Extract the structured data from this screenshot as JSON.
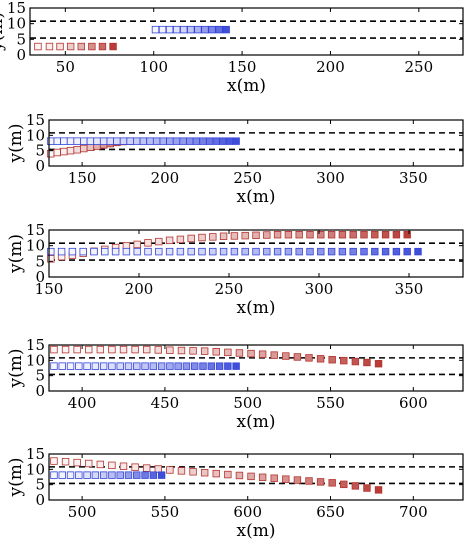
{
  "chart_data": [
    {
      "type": "scatter",
      "xlabel": "x(m)",
      "ylabel": "y(m)",
      "xlim": [
        30,
        275
      ],
      "ylim": [
        0,
        15
      ],
      "xticks": [
        50,
        100,
        150,
        200,
        250
      ],
      "yticks": [
        0,
        5,
        10,
        15
      ],
      "lane_lines": [
        5.4,
        10.8
      ],
      "series": [
        {
          "color": "#b4332e",
          "x": [
            34.5,
            41,
            47,
            53,
            59,
            65,
            71,
            77
          ],
          "y": [
            2.7,
            2.7,
            2.7,
            2.7,
            2.7,
            2.7,
            2.7,
            2.7
          ]
        },
        {
          "color": "#3444d8",
          "x": [
            101,
            105,
            109,
            113,
            117,
            121,
            125,
            129,
            133,
            137,
            141
          ],
          "y": [
            8.1,
            8.1,
            8.1,
            8.1,
            8.1,
            8.1,
            8.1,
            8.1,
            8.1,
            8.1,
            8.1
          ]
        }
      ]
    },
    {
      "type": "scatter",
      "xlabel": "x(m)",
      "ylabel": "y(m)",
      "xlim": [
        130,
        380
      ],
      "ylim": [
        0,
        15
      ],
      "xticks": [
        150,
        200,
        250,
        300,
        350
      ],
      "yticks": [
        0,
        5,
        10,
        15
      ],
      "lane_lines": [
        5.4,
        10.8
      ],
      "series": [
        {
          "color": "#b4332e",
          "x": [
            131,
            135,
            139,
            143,
            147,
            151,
            155,
            159,
            163,
            167,
            171,
            175,
            179
          ],
          "y": [
            4.0,
            4.4,
            4.7,
            5.0,
            5.3,
            5.7,
            6.1,
            6.5,
            6.9,
            7.3,
            7.7,
            8.0,
            8.1
          ]
        },
        {
          "color": "#3444d8",
          "x": [
            131,
            135,
            139,
            143,
            147,
            151,
            155,
            159,
            163,
            167,
            171,
            175,
            179,
            183,
            187,
            191,
            195,
            199,
            203,
            207,
            211,
            215,
            219,
            223,
            227,
            231,
            235,
            239,
            243
          ],
          "y": [
            8.1,
            8.1,
            8.1,
            8.1,
            8.1,
            8.1,
            8.1,
            8.1,
            8.1,
            8.1,
            8.1,
            8.1,
            8.1,
            8.1,
            8.1,
            8.1,
            8.1,
            8.1,
            8.1,
            8.1,
            8.1,
            8.1,
            8.1,
            8.1,
            8.1,
            8.1,
            8.1,
            8.1,
            8.1
          ]
        }
      ]
    },
    {
      "type": "scatter",
      "xlabel": "x(m)",
      "ylabel": "y(m)",
      "xlim": [
        150,
        380
      ],
      "ylim": [
        0,
        15
      ],
      "xticks": [
        150,
        200,
        250,
        300,
        350
      ],
      "yticks": [
        0,
        5,
        10,
        15
      ],
      "lane_lines": [
        5.4,
        10.8
      ],
      "series": [
        {
          "color": "#b4332e",
          "x": [
            151,
            157,
            163,
            169,
            175,
            181,
            187,
            193,
            199,
            205,
            211,
            217,
            223,
            229,
            235,
            241,
            247,
            253,
            259,
            265,
            271,
            277,
            283,
            289,
            295,
            301,
            307,
            313,
            319,
            325,
            331,
            337,
            343,
            349
          ],
          "y": [
            5.8,
            6.5,
            7.0,
            7.6,
            8.2,
            8.8,
            9.4,
            9.9,
            10.4,
            10.9,
            11.3,
            11.7,
            12.0,
            12.3,
            12.6,
            12.8,
            13.0,
            13.1,
            13.2,
            13.3,
            13.4,
            13.5,
            13.5,
            13.5,
            13.5,
            13.5,
            13.5,
            13.5,
            13.5,
            13.5,
            13.5,
            13.5,
            13.5,
            13.5
          ]
        },
        {
          "color": "#3444d8",
          "x": [
            151,
            157,
            163,
            169,
            175,
            181,
            187,
            193,
            199,
            205,
            211,
            217,
            223,
            229,
            235,
            241,
            247,
            253,
            259,
            265,
            271,
            277,
            283,
            289,
            295,
            301,
            307,
            313,
            319,
            325,
            331,
            337,
            343,
            349,
            355
          ],
          "y": [
            8.1,
            8.1,
            8.1,
            8.1,
            8.1,
            8.1,
            8.1,
            8.1,
            8.1,
            8.1,
            8.1,
            8.1,
            8.1,
            8.1,
            8.1,
            8.1,
            8.1,
            8.1,
            8.1,
            8.1,
            8.1,
            8.1,
            8.1,
            8.1,
            8.1,
            8.1,
            8.1,
            8.1,
            8.1,
            8.1,
            8.1,
            8.1,
            8.1,
            8.1,
            8.1
          ]
        }
      ]
    },
    {
      "type": "scatter",
      "xlabel": "x(m)",
      "ylabel": "y(m)",
      "xlim": [
        380,
        630
      ],
      "ylim": [
        0,
        15
      ],
      "xticks": [
        400,
        450,
        500,
        550,
        600
      ],
      "yticks": [
        0,
        5,
        10,
        15
      ],
      "lane_lines": [
        5.4,
        10.8
      ],
      "series": [
        {
          "color": "#b4332e",
          "x": [
            383,
            390,
            397,
            404,
            411,
            418,
            425,
            432,
            439,
            446,
            453,
            460,
            467,
            474,
            481,
            488,
            495,
            502,
            509,
            516,
            523,
            530,
            537,
            544,
            551,
            558,
            565,
            572,
            579
          ],
          "y": [
            13.5,
            13.5,
            13.5,
            13.5,
            13.5,
            13.5,
            13.5,
            13.5,
            13.5,
            13.4,
            13.3,
            13.2,
            13.1,
            13.0,
            12.8,
            12.6,
            12.4,
            12.2,
            12.0,
            11.7,
            11.4,
            11.1,
            10.8,
            10.5,
            10.2,
            9.9,
            9.6,
            9.3,
            8.9
          ]
        },
        {
          "color": "#3444d8",
          "x": [
            383,
            388,
            393,
            398,
            403,
            408,
            413,
            418,
            423,
            428,
            433,
            438,
            443,
            448,
            453,
            458,
            463,
            468,
            473,
            478,
            483,
            488,
            493
          ],
          "y": [
            8.1,
            8.1,
            8.1,
            8.1,
            8.1,
            8.1,
            8.1,
            8.1,
            8.1,
            8.1,
            8.1,
            8.1,
            8.1,
            8.1,
            8.1,
            8.1,
            8.1,
            8.1,
            8.1,
            8.1,
            8.1,
            8.1,
            8.1
          ]
        }
      ]
    },
    {
      "type": "scatter",
      "xlabel": "x(m)",
      "ylabel": "y(m)",
      "xlim": [
        480,
        730
      ],
      "ylim": [
        0,
        15
      ],
      "xticks": [
        500,
        550,
        600,
        650,
        700
      ],
      "yticks": [
        0,
        5,
        10,
        15
      ],
      "lane_lines": [
        5.4,
        10.8
      ],
      "series": [
        {
          "color": "#b4332e",
          "x": [
            483,
            490,
            497,
            504,
            511,
            518,
            525,
            532,
            539,
            546,
            553,
            560,
            567,
            574,
            581,
            588,
            595,
            602,
            609,
            616,
            623,
            630,
            637,
            644,
            651,
            658,
            665,
            672,
            679
          ],
          "y": [
            12.7,
            12.5,
            12.2,
            11.9,
            11.6,
            11.3,
            11.0,
            10.7,
            10.4,
            10.1,
            9.8,
            9.5,
            9.2,
            8.9,
            8.6,
            8.3,
            8.0,
            7.7,
            7.4,
            7.1,
            6.8,
            6.5,
            6.2,
            5.9,
            5.6,
            5.1,
            4.6,
            3.9,
            3.3
          ]
        },
        {
          "color": "#3444d8",
          "x": [
            483,
            488,
            493,
            498,
            503,
            508,
            513,
            518,
            523,
            528,
            533,
            538,
            543,
            548
          ],
          "y": [
            8.1,
            8.1,
            8.1,
            8.1,
            8.1,
            8.1,
            8.1,
            8.1,
            8.1,
            8.1,
            8.1,
            8.1,
            8.1,
            8.1
          ]
        }
      ]
    }
  ]
}
